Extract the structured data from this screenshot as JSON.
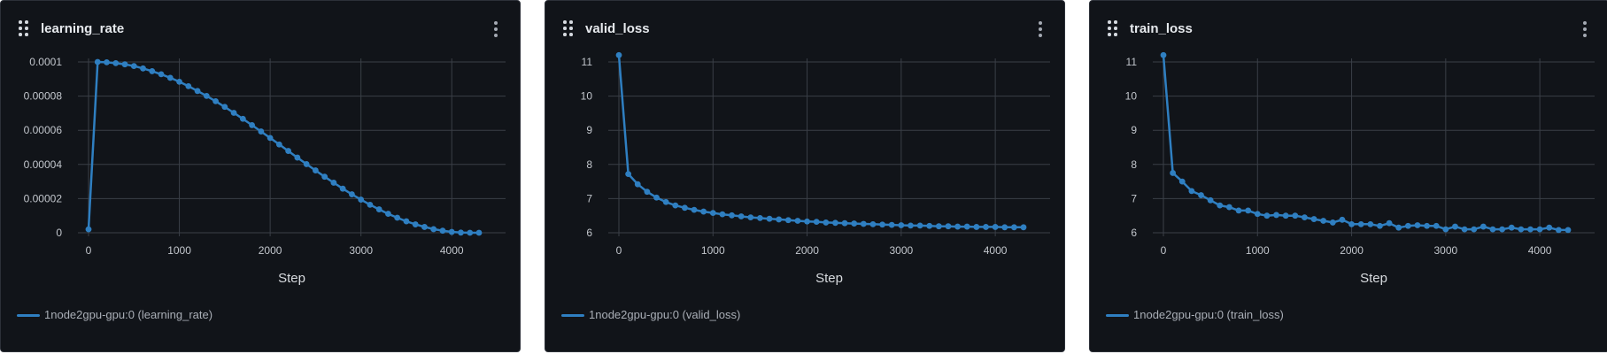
{
  "panels": [
    {
      "title": "learning_rate",
      "legend_label": "1node2gpu-gpu:0 (learning_rate)",
      "chart_data": {
        "type": "line",
        "title": "learning_rate",
        "xlabel": "Step",
        "ylabel": "",
        "xlim": [
          0,
          4300
        ],
        "ylim": [
          0,
          0.0001
        ],
        "xticks": [
          0,
          1000,
          2000,
          3000,
          4000
        ],
        "yticks": [
          0,
          2e-05,
          4e-05,
          6e-05,
          8e-05,
          0.0001
        ],
        "ytick_labels": [
          "0",
          "0.00002",
          "0.00004",
          "0.00006",
          "0.00008",
          "0.0001"
        ],
        "grid": true,
        "legend_position": "bottom-left",
        "series": [
          {
            "name": "1node2gpu-gpu:0 (learning_rate)",
            "color": "#2f7fc1",
            "x": [
              0,
              100,
              200,
              300,
              400,
              500,
              600,
              700,
              800,
              900,
              1000,
              1100,
              1200,
              1300,
              1400,
              1500,
              1600,
              1700,
              1800,
              1900,
              2000,
              2100,
              2200,
              2300,
              2400,
              2500,
              2600,
              2700,
              2800,
              2900,
              3000,
              3100,
              3200,
              3300,
              3400,
              3500,
              3600,
              3700,
              3800,
              3900,
              4000,
              4100,
              4200,
              4300
            ],
            "y": [
              2e-06,
              0.0001,
              9.98e-05,
              9.93e-05,
              9.86e-05,
              9.76e-05,
              9.62e-05,
              9.46e-05,
              9.28e-05,
              9.07e-05,
              8.84e-05,
              8.58e-05,
              8.3e-05,
              8.01e-05,
              7.7e-05,
              7.37e-05,
              7.02e-05,
              6.67e-05,
              6.3e-05,
              5.93e-05,
              5.55e-05,
              5.17e-05,
              4.79e-05,
              4.4e-05,
              4.02e-05,
              3.65e-05,
              3.28e-05,
              2.93e-05,
              2.58e-05,
              2.25e-05,
              1.94e-05,
              1.64e-05,
              1.37e-05,
              1.11e-05,
              8.8e-06,
              6.7e-06,
              4.9e-06,
              3.4e-06,
              2.1e-06,
              1.2e-06,
              5e-07,
              1e-07,
              0.0,
              0.0
            ]
          }
        ]
      }
    },
    {
      "title": "valid_loss",
      "legend_label": "1node2gpu-gpu:0 (valid_loss)",
      "chart_data": {
        "type": "line",
        "title": "valid_loss",
        "xlabel": "Step",
        "ylabel": "",
        "xlim": [
          0,
          4300
        ],
        "ylim": [
          6,
          11
        ],
        "xticks": [
          0,
          1000,
          2000,
          3000,
          4000
        ],
        "yticks": [
          6,
          7,
          8,
          9,
          10,
          11
        ],
        "ytick_labels": [
          "6",
          "7",
          "8",
          "9",
          "10",
          "11"
        ],
        "grid": true,
        "legend_position": "bottom-left",
        "series": [
          {
            "name": "1node2gpu-gpu:0 (valid_loss)",
            "color": "#2f7fc1",
            "x": [
              0,
              100,
              200,
              300,
              400,
              500,
              600,
              700,
              800,
              900,
              1000,
              1100,
              1200,
              1300,
              1400,
              1500,
              1600,
              1700,
              1800,
              1900,
              2000,
              2100,
              2200,
              2300,
              2400,
              2500,
              2600,
              2700,
              2800,
              2900,
              3000,
              3100,
              3200,
              3300,
              3400,
              3500,
              3600,
              3700,
              3800,
              3900,
              4000,
              4100,
              4200,
              4300
            ],
            "y": [
              11.2,
              7.72,
              7.42,
              7.2,
              7.03,
              6.9,
              6.8,
              6.73,
              6.67,
              6.62,
              6.58,
              6.54,
              6.51,
              6.48,
              6.45,
              6.43,
              6.41,
              6.39,
              6.37,
              6.35,
              6.33,
              6.32,
              6.3,
              6.29,
              6.28,
              6.27,
              6.26,
              6.25,
              6.24,
              6.23,
              6.22,
              6.21,
              6.21,
              6.2,
              6.19,
              6.19,
              6.18,
              6.18,
              6.17,
              6.17,
              6.17,
              6.16,
              6.16,
              6.16
            ]
          }
        ]
      }
    },
    {
      "title": "train_loss",
      "legend_label": "1node2gpu-gpu:0 (train_loss)",
      "chart_data": {
        "type": "line",
        "title": "train_loss",
        "xlabel": "Step",
        "ylabel": "",
        "xlim": [
          0,
          4300
        ],
        "ylim": [
          6,
          11
        ],
        "xticks": [
          0,
          1000,
          2000,
          3000,
          4000
        ],
        "yticks": [
          6,
          7,
          8,
          9,
          10,
          11
        ],
        "ytick_labels": [
          "6",
          "7",
          "8",
          "9",
          "10",
          "11"
        ],
        "grid": true,
        "legend_position": "bottom-left",
        "series": [
          {
            "name": "1node2gpu-gpu:0 (train_loss)",
            "color": "#2f7fc1",
            "x": [
              0,
              100,
              200,
              300,
              400,
              500,
              600,
              700,
              800,
              900,
              1000,
              1100,
              1200,
              1300,
              1400,
              1500,
              1600,
              1700,
              1800,
              1900,
              2000,
              2100,
              2200,
              2300,
              2400,
              2500,
              2600,
              2700,
              2800,
              2900,
              3000,
              3100,
              3200,
              3300,
              3400,
              3500,
              3600,
              3700,
              3800,
              3900,
              4000,
              4100,
              4200,
              4300
            ],
            "y": [
              11.2,
              7.75,
              7.5,
              7.22,
              7.1,
              6.95,
              6.8,
              6.75,
              6.65,
              6.65,
              6.55,
              6.5,
              6.52,
              6.5,
              6.5,
              6.45,
              6.4,
              6.35,
              6.3,
              6.38,
              6.25,
              6.25,
              6.25,
              6.2,
              6.28,
              6.15,
              6.2,
              6.22,
              6.2,
              6.2,
              6.1,
              6.18,
              6.1,
              6.1,
              6.18,
              6.1,
              6.1,
              6.15,
              6.1,
              6.1,
              6.1,
              6.15,
              6.08,
              6.08
            ]
          }
        ]
      }
    }
  ]
}
